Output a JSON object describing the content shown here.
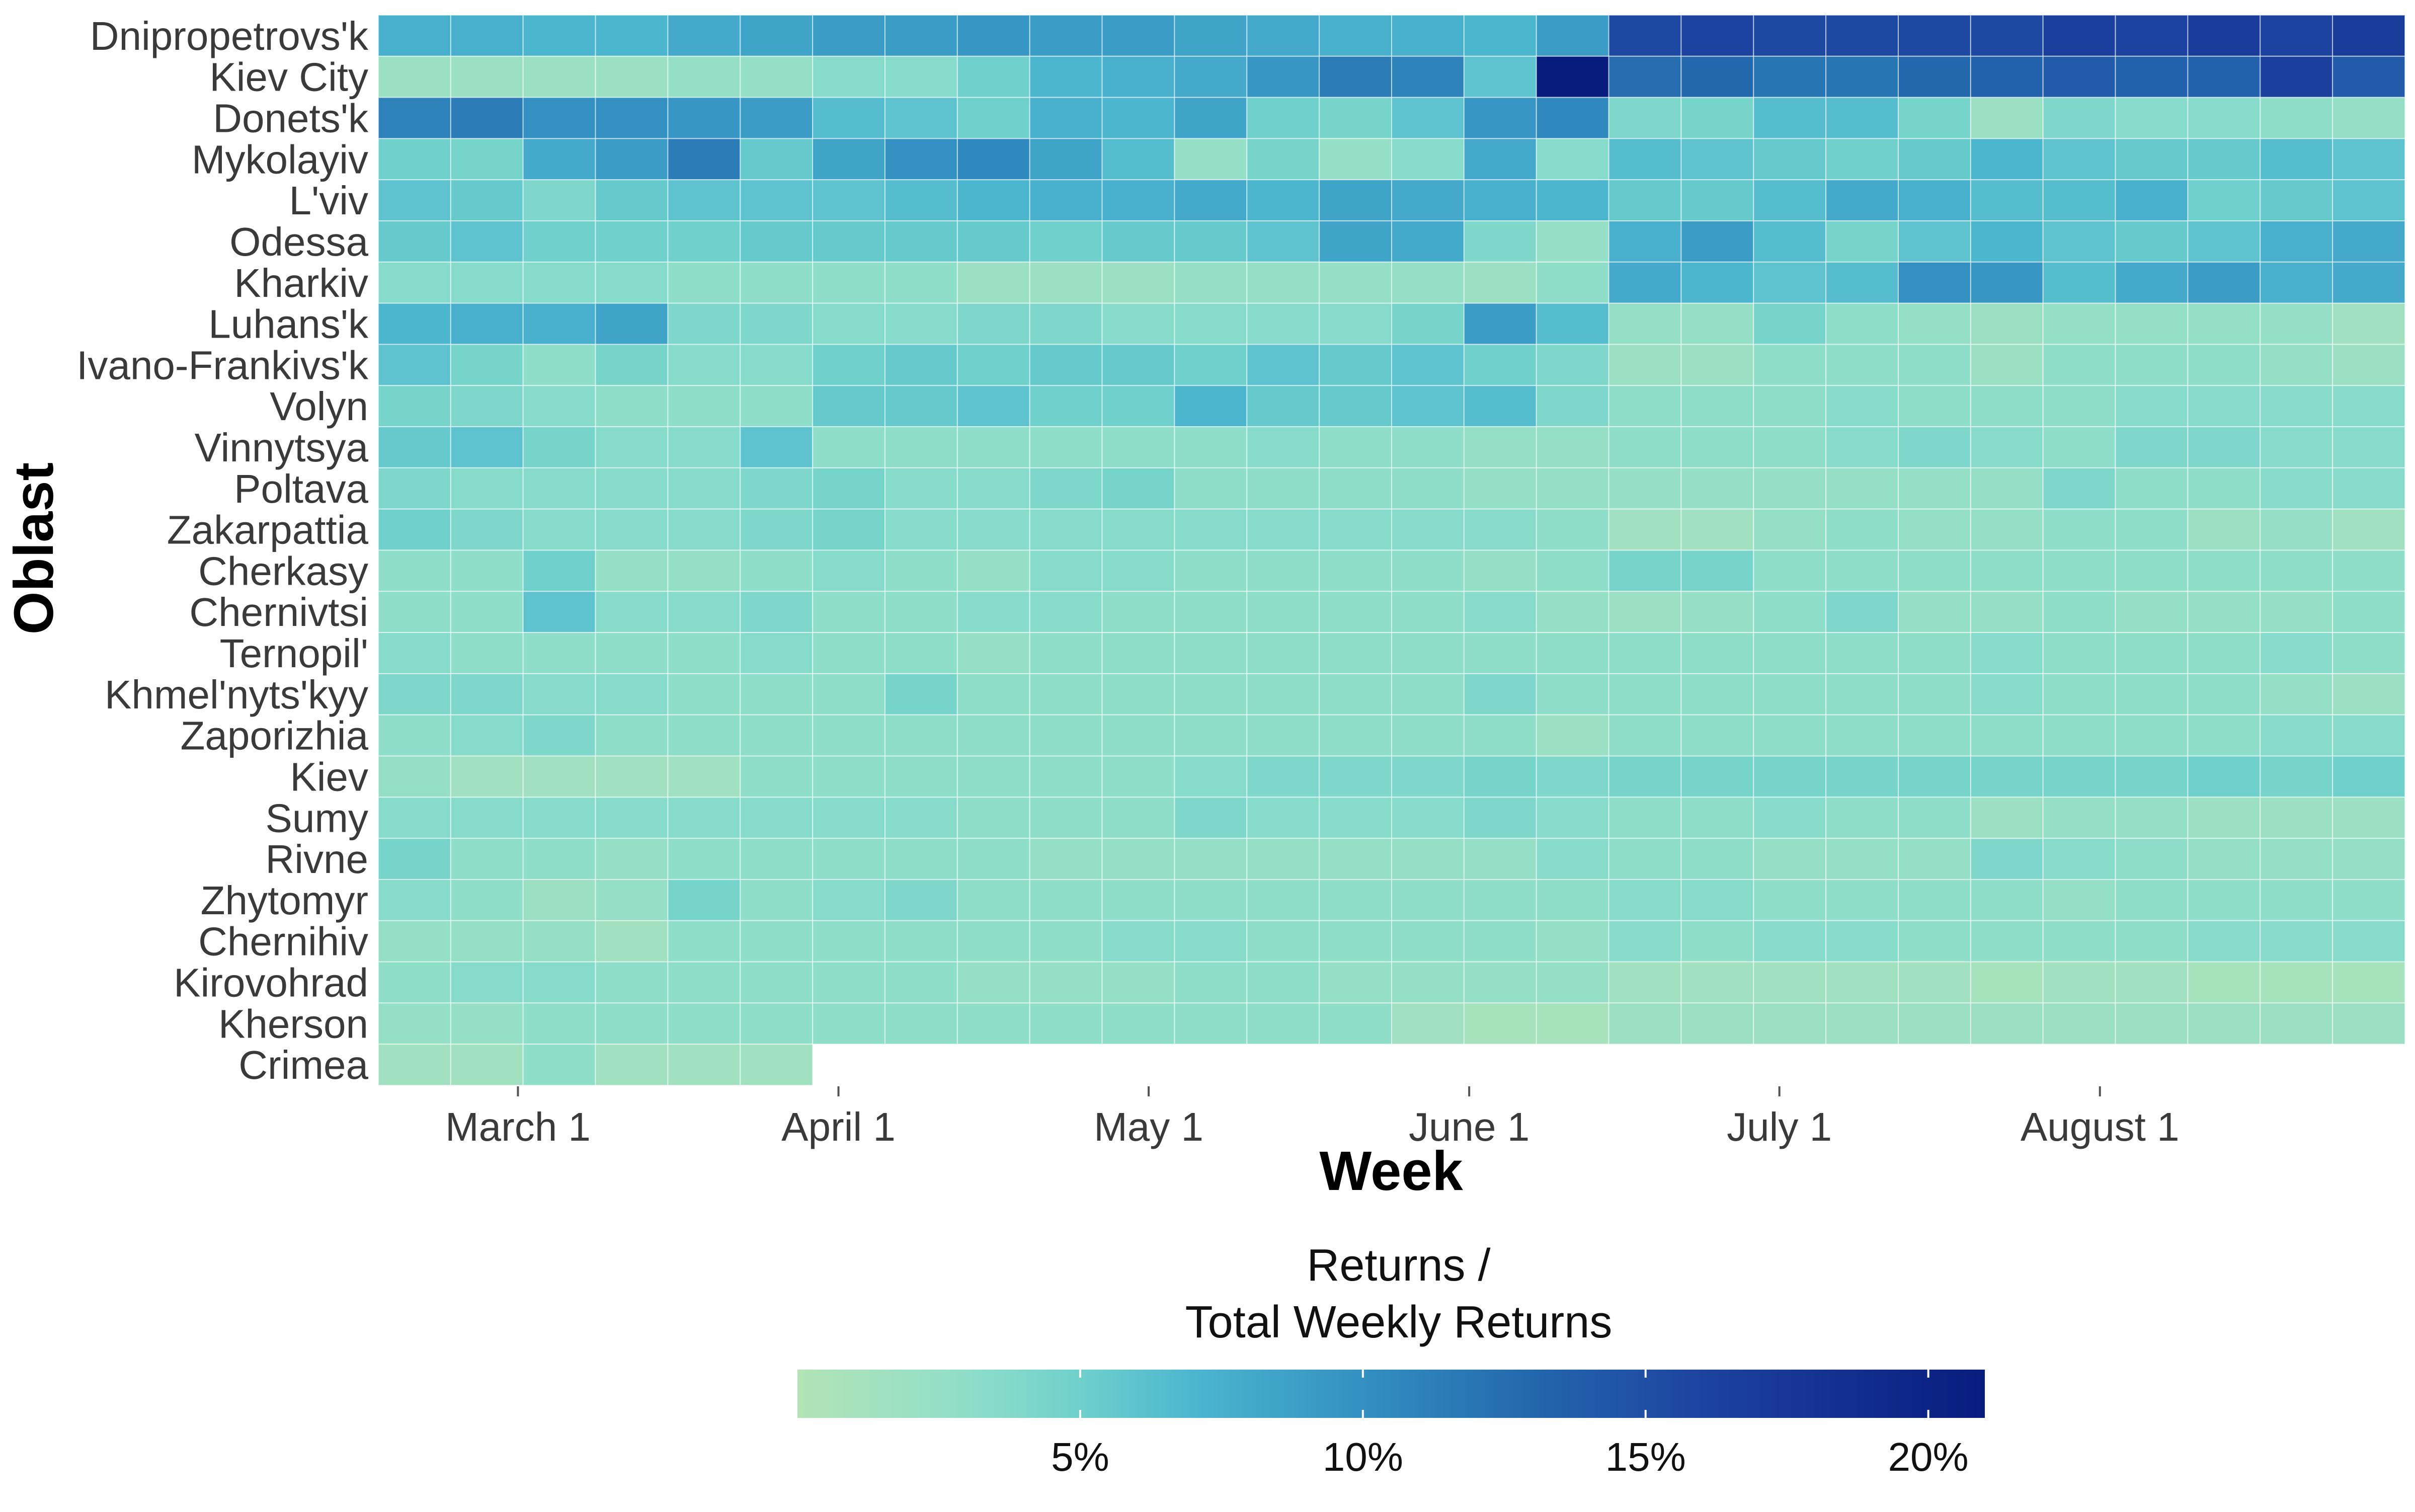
{
  "chart_data": {
    "type": "heatmap",
    "title": "",
    "xlabel": "Week",
    "ylabel": "Oblast",
    "x_axis": {
      "kind": "date",
      "first_week": "2022-02-19",
      "week_step_days": 7,
      "n_weeks": 28,
      "ticks": [
        {
          "label": "March 1",
          "date": "2022-03-01"
        },
        {
          "label": "April 1",
          "date": "2022-04-01"
        },
        {
          "label": "May 1",
          "date": "2022-05-01"
        },
        {
          "label": "June 1",
          "date": "2022-06-01"
        },
        {
          "label": "July 1",
          "date": "2022-07-01"
        },
        {
          "label": "August 1",
          "date": "2022-08-01"
        }
      ]
    },
    "rows": [
      {
        "name": "Dnipropetrovs'k",
        "values": [
          7.5,
          7.5,
          7.0,
          7.0,
          8.0,
          8.5,
          9.0,
          9.0,
          9.5,
          9.0,
          9.0,
          8.5,
          8.0,
          7.5,
          7.5,
          7.0,
          9.0,
          15.5,
          16.0,
          15.5,
          15.5,
          15.5,
          15.5,
          16.5,
          16.0,
          17.0,
          16.0,
          17.0
        ]
      },
      {
        "name": "Kiev City",
        "values": [
          2.0,
          2.0,
          2.0,
          2.0,
          2.5,
          2.5,
          3.5,
          3.5,
          5.0,
          7.0,
          7.5,
          8.0,
          9.5,
          11.5,
          11.0,
          6.0,
          21.0,
          12.5,
          13.0,
          12.0,
          12.0,
          13.0,
          13.5,
          14.0,
          13.5,
          13.5,
          16.5,
          14.0
        ]
      },
      {
        "name": "Donets'k",
        "values": [
          11.0,
          11.5,
          10.0,
          10.0,
          9.5,
          9.0,
          6.5,
          6.0,
          5.0,
          7.5,
          7.0,
          8.5,
          5.0,
          4.5,
          6.0,
          9.5,
          10.5,
          4.0,
          4.5,
          6.5,
          6.5,
          4.5,
          2.0,
          4.0,
          3.5,
          3.5,
          3.0,
          2.5
        ]
      },
      {
        "name": "Mykolayiv",
        "values": [
          5.0,
          4.5,
          8.0,
          9.0,
          11.5,
          5.5,
          8.5,
          10.0,
          10.5,
          8.5,
          6.5,
          2.5,
          4.5,
          2.5,
          3.5,
          8.0,
          3.5,
          6.5,
          6.0,
          5.5,
          5.0,
          5.5,
          7.0,
          6.0,
          5.5,
          5.5,
          6.5,
          6.0
        ]
      },
      {
        "name": "L'viv",
        "values": [
          6.0,
          5.5,
          4.0,
          5.5,
          6.0,
          6.0,
          6.0,
          6.5,
          7.0,
          7.5,
          7.5,
          8.0,
          7.0,
          8.5,
          8.0,
          7.5,
          7.0,
          5.5,
          5.5,
          6.5,
          8.0,
          7.5,
          6.5,
          6.5,
          7.5,
          5.0,
          5.5,
          6.0
        ]
      },
      {
        "name": "Odessa",
        "values": [
          5.5,
          6.0,
          5.0,
          5.0,
          5.0,
          5.5,
          5.5,
          5.5,
          5.5,
          5.0,
          5.5,
          5.5,
          6.0,
          8.5,
          8.0,
          4.0,
          2.5,
          7.5,
          9.0,
          6.5,
          4.5,
          6.0,
          7.0,
          6.0,
          5.5,
          6.0,
          7.5,
          8.0
        ]
      },
      {
        "name": "Kharkiv",
        "values": [
          3.5,
          3.5,
          3.5,
          3.5,
          3.0,
          3.0,
          3.0,
          3.0,
          2.0,
          2.0,
          2.0,
          2.5,
          2.5,
          2.5,
          2.5,
          2.0,
          3.0,
          8.0,
          7.0,
          6.0,
          6.5,
          10.0,
          9.5,
          6.5,
          8.0,
          9.0,
          7.5,
          8.0
        ]
      },
      {
        "name": "Luhans'k",
        "values": [
          7.0,
          7.5,
          7.5,
          8.5,
          4.0,
          4.0,
          3.5,
          3.5,
          4.0,
          4.0,
          3.5,
          3.5,
          3.5,
          3.5,
          4.5,
          9.0,
          6.5,
          2.5,
          2.5,
          4.5,
          3.0,
          2.5,
          2.0,
          2.5,
          2.5,
          2.5,
          2.5,
          1.5
        ]
      },
      {
        "name": "Ivano-Frankivs'k",
        "values": [
          6.0,
          4.5,
          3.0,
          4.5,
          3.5,
          3.5,
          5.0,
          5.5,
          5.0,
          5.5,
          5.5,
          5.0,
          6.0,
          5.5,
          6.0,
          5.0,
          4.0,
          2.0,
          2.0,
          3.0,
          3.0,
          3.0,
          2.0,
          3.0,
          3.0,
          3.0,
          2.5,
          2.0
        ]
      },
      {
        "name": "Volyn",
        "values": [
          4.5,
          4.0,
          3.5,
          3.0,
          3.0,
          3.0,
          5.5,
          5.5,
          6.0,
          5.0,
          5.0,
          7.0,
          5.5,
          5.5,
          6.0,
          6.5,
          4.0,
          3.0,
          3.0,
          3.0,
          3.5,
          3.0,
          3.0,
          3.0,
          3.5,
          3.5,
          3.5,
          3.5
        ]
      },
      {
        "name": "Vinnytsya",
        "values": [
          5.5,
          6.0,
          4.5,
          3.5,
          3.5,
          6.0,
          3.0,
          3.0,
          3.0,
          3.0,
          3.0,
          3.0,
          3.5,
          3.0,
          3.0,
          2.5,
          2.5,
          3.0,
          3.0,
          3.0,
          3.5,
          4.0,
          3.5,
          3.0,
          4.0,
          4.0,
          3.5,
          3.5
        ]
      },
      {
        "name": "Poltava",
        "values": [
          4.0,
          3.5,
          3.5,
          3.5,
          3.5,
          4.0,
          4.5,
          3.5,
          3.5,
          4.0,
          4.5,
          3.0,
          3.0,
          3.0,
          3.0,
          2.5,
          2.5,
          2.5,
          2.5,
          2.5,
          2.5,
          2.5,
          2.5,
          4.0,
          3.0,
          3.0,
          3.5,
          3.5
        ]
      },
      {
        "name": "Zakarpattia",
        "values": [
          5.0,
          4.0,
          3.5,
          3.5,
          3.5,
          4.0,
          4.5,
          3.5,
          3.5,
          3.5,
          3.5,
          3.5,
          3.5,
          3.5,
          3.5,
          3.5,
          3.0,
          1.5,
          1.5,
          2.5,
          3.0,
          2.5,
          2.5,
          3.0,
          3.0,
          2.0,
          2.5,
          1.5
        ]
      },
      {
        "name": "Cherkasy",
        "values": [
          3.0,
          3.0,
          5.0,
          2.5,
          2.5,
          3.0,
          3.5,
          3.0,
          2.5,
          3.5,
          3.5,
          3.0,
          3.0,
          3.0,
          3.0,
          2.5,
          3.0,
          4.5,
          4.5,
          3.0,
          3.0,
          3.0,
          3.0,
          3.0,
          3.0,
          3.0,
          3.0,
          3.0
        ]
      },
      {
        "name": "Chernivtsi",
        "values": [
          3.0,
          3.0,
          6.0,
          3.5,
          3.5,
          4.0,
          3.0,
          3.0,
          3.5,
          3.5,
          3.0,
          3.0,
          3.0,
          3.0,
          3.0,
          3.5,
          2.5,
          2.0,
          2.5,
          3.0,
          4.0,
          2.5,
          2.5,
          3.0,
          2.5,
          2.5,
          2.5,
          3.0
        ]
      },
      {
        "name": "Ternopil'",
        "values": [
          3.5,
          3.0,
          3.0,
          3.0,
          3.0,
          3.5,
          3.0,
          3.0,
          2.5,
          3.0,
          3.0,
          3.0,
          3.0,
          3.0,
          3.0,
          3.0,
          3.0,
          3.0,
          3.0,
          3.0,
          3.0,
          3.0,
          3.5,
          3.0,
          3.0,
          3.0,
          3.5,
          3.0
        ]
      },
      {
        "name": "Khmel'nyts'kyy",
        "values": [
          4.0,
          4.0,
          3.5,
          3.5,
          3.0,
          3.0,
          3.0,
          4.5,
          3.0,
          3.0,
          3.0,
          3.0,
          3.0,
          3.0,
          3.0,
          4.0,
          3.0,
          3.0,
          3.0,
          3.0,
          3.0,
          3.0,
          3.5,
          3.0,
          3.0,
          3.0,
          2.5,
          2.0
        ]
      },
      {
        "name": "Zaporizhia",
        "values": [
          3.0,
          3.5,
          4.0,
          3.0,
          3.0,
          3.0,
          3.0,
          3.0,
          3.0,
          3.0,
          3.0,
          3.0,
          3.0,
          3.0,
          3.0,
          3.0,
          2.0,
          3.0,
          3.0,
          3.0,
          3.0,
          3.0,
          3.0,
          3.0,
          3.0,
          3.0,
          3.5,
          3.5
        ]
      },
      {
        "name": "Kiev",
        "values": [
          2.5,
          1.5,
          1.5,
          1.5,
          1.5,
          3.0,
          3.0,
          3.0,
          3.0,
          3.0,
          3.0,
          3.5,
          4.0,
          4.0,
          4.0,
          4.5,
          4.0,
          4.5,
          4.5,
          4.5,
          4.5,
          4.5,
          4.5,
          4.5,
          4.5,
          5.0,
          4.5,
          5.0
        ]
      },
      {
        "name": "Sumy",
        "values": [
          3.5,
          3.5,
          3.5,
          3.5,
          3.5,
          3.5,
          3.5,
          3.5,
          3.0,
          3.0,
          3.0,
          4.0,
          3.5,
          3.5,
          3.5,
          4.0,
          3.5,
          3.0,
          3.0,
          3.5,
          3.0,
          3.0,
          2.0,
          2.5,
          2.5,
          2.0,
          2.0,
          2.0
        ]
      },
      {
        "name": "Rivne",
        "values": [
          4.5,
          3.0,
          3.0,
          2.5,
          3.0,
          3.0,
          3.0,
          3.0,
          3.0,
          2.5,
          2.5,
          2.5,
          2.5,
          2.5,
          2.5,
          2.5,
          3.5,
          3.0,
          3.0,
          2.5,
          2.5,
          2.5,
          4.0,
          3.5,
          3.0,
          2.5,
          2.5,
          2.5
        ]
      },
      {
        "name": "Zhytomyr",
        "values": [
          3.5,
          3.0,
          2.0,
          2.5,
          4.5,
          3.0,
          3.5,
          4.0,
          3.0,
          3.0,
          3.0,
          3.0,
          3.0,
          3.0,
          3.0,
          3.0,
          3.0,
          3.5,
          3.5,
          3.0,
          3.0,
          3.0,
          3.0,
          2.5,
          3.0,
          3.0,
          3.0,
          3.0
        ]
      },
      {
        "name": "Chernihiv",
        "values": [
          2.5,
          2.5,
          2.5,
          1.5,
          3.0,
          3.0,
          3.0,
          3.0,
          3.0,
          3.0,
          3.5,
          3.5,
          3.0,
          3.0,
          3.0,
          3.0,
          2.5,
          3.5,
          3.0,
          3.5,
          3.5,
          3.0,
          3.0,
          3.0,
          3.0,
          3.5,
          3.5,
          3.5
        ]
      },
      {
        "name": "Kirovohrad",
        "values": [
          3.0,
          3.5,
          3.5,
          3.0,
          3.0,
          3.0,
          3.0,
          3.0,
          2.5,
          2.5,
          2.5,
          3.0,
          3.0,
          2.5,
          2.5,
          2.5,
          2.5,
          1.5,
          1.5,
          1.5,
          1.5,
          1.5,
          1.0,
          1.5,
          1.5,
          1.0,
          1.0,
          1.0
        ]
      },
      {
        "name": "Kherson",
        "values": [
          2.5,
          2.5,
          3.0,
          3.0,
          3.0,
          3.0,
          3.0,
          3.0,
          3.0,
          3.0,
          3.0,
          3.0,
          3.0,
          3.0,
          1.5,
          1.0,
          1.0,
          2.0,
          2.0,
          2.0,
          2.0,
          2.0,
          2.0,
          2.0,
          2.0,
          2.0,
          2.0,
          2.0
        ]
      },
      {
        "name": "Crimea",
        "values": [
          1.5,
          1.5,
          3.0,
          1.5,
          1.5,
          1.5,
          null,
          null,
          null,
          null,
          null,
          null,
          null,
          null,
          null,
          null,
          null,
          null,
          null,
          null,
          null,
          null,
          null,
          null,
          null,
          null,
          null,
          null
        ]
      }
    ],
    "color_scale": {
      "min": 0,
      "max": 21,
      "stops": [
        {
          "v": 0,
          "color": "#b2e4b6"
        },
        {
          "v": 3,
          "color": "#8fdec9"
        },
        {
          "v": 5,
          "color": "#6fd0cc"
        },
        {
          "v": 7,
          "color": "#4cb6cf"
        },
        {
          "v": 10,
          "color": "#3390c1"
        },
        {
          "v": 13,
          "color": "#2367ad"
        },
        {
          "v": 16,
          "color": "#1d43a0"
        },
        {
          "v": 21,
          "color": "#081c7e"
        }
      ]
    },
    "legend": {
      "title_lines": [
        "Returns /",
        "Total Weekly Returns"
      ],
      "ticks": [
        {
          "label": "5%",
          "v": 5
        },
        {
          "label": "10%",
          "v": 10
        },
        {
          "label": "15%",
          "v": 15
        },
        {
          "label": "20%",
          "v": 20
        }
      ],
      "placement": "bottom"
    },
    "grid": false
  }
}
